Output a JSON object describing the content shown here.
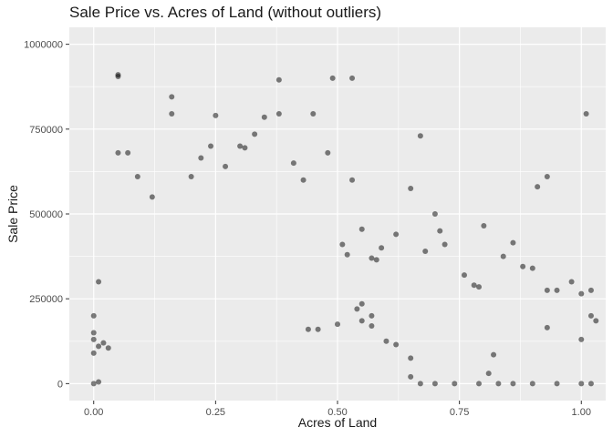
{
  "chart_data": {
    "type": "scatter",
    "title": "Sale Price vs. Acres of Land (without outliers)",
    "xlabel": "Acres of Land",
    "ylabel": "Sale Price",
    "xlim": [
      -0.05,
      1.05
    ],
    "ylim": [
      -50000,
      1050000
    ],
    "x_ticks": [
      0.0,
      0.25,
      0.5,
      0.75,
      1.0
    ],
    "x_tick_labels": [
      "0.00",
      "0.25",
      "0.50",
      "0.75",
      "1.00"
    ],
    "y_ticks": [
      0,
      250000,
      500000,
      750000,
      1000000
    ],
    "y_tick_labels": [
      "0",
      "250000",
      "500000",
      "750000",
      "1000000"
    ],
    "grid": true,
    "legend": "none",
    "colors": {
      "panel": "#EBEBEB",
      "grid": "#FFFFFF",
      "point": "#000000",
      "point_alpha": 0.5
    },
    "series": [
      {
        "values": [
          [
            0.05,
            910000
          ],
          [
            0.05,
            905000
          ],
          [
            0.16,
            845000
          ],
          [
            0.16,
            795000
          ],
          [
            0.25,
            790000
          ],
          [
            0.38,
            895000
          ],
          [
            0.49,
            900000
          ],
          [
            0.53,
            900000
          ],
          [
            0.45,
            795000
          ],
          [
            0.35,
            785000
          ],
          [
            0.38,
            795000
          ],
          [
            0.05,
            680000
          ],
          [
            0.07,
            680000
          ],
          [
            0.67,
            730000
          ],
          [
            0.93,
            610000
          ],
          [
            0.91,
            580000
          ],
          [
            1.01,
            795000
          ],
          [
            0.3,
            700000
          ],
          [
            0.33,
            735000
          ],
          [
            0.41,
            650000
          ],
          [
            0.43,
            600000
          ],
          [
            0.48,
            680000
          ],
          [
            0.53,
            600000
          ],
          [
            0.09,
            610000
          ],
          [
            0.12,
            550000
          ],
          [
            0.2,
            610000
          ],
          [
            0.22,
            665000
          ],
          [
            0.24,
            700000
          ],
          [
            0.27,
            640000
          ],
          [
            0.31,
            695000
          ],
          [
            0.65,
            575000
          ],
          [
            0.7,
            500000
          ],
          [
            0.71,
            450000
          ],
          [
            0.62,
            440000
          ],
          [
            0.59,
            400000
          ],
          [
            0.68,
            390000
          ],
          [
            0.72,
            410000
          ],
          [
            0.8,
            465000
          ],
          [
            0.86,
            415000
          ],
          [
            0.84,
            375000
          ],
          [
            0.76,
            320000
          ],
          [
            0.78,
            290000
          ],
          [
            0.79,
            285000
          ],
          [
            0.88,
            345000
          ],
          [
            0.9,
            340000
          ],
          [
            0.93,
            275000
          ],
          [
            0.95,
            275000
          ],
          [
            0.98,
            300000
          ],
          [
            1.0,
            265000
          ],
          [
            1.02,
            275000
          ],
          [
            1.02,
            200000
          ],
          [
            1.03,
            185000
          ],
          [
            1.0,
            130000
          ],
          [
            0.93,
            165000
          ],
          [
            0.82,
            85000
          ],
          [
            0.81,
            30000
          ],
          [
            0.86,
            0
          ],
          [
            0.9,
            0
          ],
          [
            0.95,
            0
          ],
          [
            1.0,
            0
          ],
          [
            1.02,
            0
          ],
          [
            0.79,
            0
          ],
          [
            0.83,
            0
          ],
          [
            0.74,
            0
          ],
          [
            0.7,
            0
          ],
          [
            0.67,
            0
          ],
          [
            0.65,
            20000
          ],
          [
            0.65,
            75000
          ],
          [
            0.6,
            125000
          ],
          [
            0.62,
            115000
          ],
          [
            0.57,
            170000
          ],
          [
            0.55,
            185000
          ],
          [
            0.57,
            200000
          ],
          [
            0.54,
            220000
          ],
          [
            0.51,
            410000
          ],
          [
            0.52,
            380000
          ],
          [
            0.55,
            455000
          ],
          [
            0.57,
            370000
          ],
          [
            0.58,
            365000
          ],
          [
            0.55,
            235000
          ],
          [
            0.5,
            175000
          ],
          [
            0.46,
            160000
          ],
          [
            0.44,
            160000
          ],
          [
            0.0,
            200000
          ],
          [
            0.0,
            130000
          ],
          [
            0.01,
            110000
          ],
          [
            0.01,
            300000
          ],
          [
            0.0,
            90000
          ],
          [
            0.0,
            0
          ],
          [
            0.01,
            5000
          ],
          [
            0.0,
            150000
          ],
          [
            0.02,
            120000
          ],
          [
            0.03,
            105000
          ]
        ]
      }
    ]
  }
}
